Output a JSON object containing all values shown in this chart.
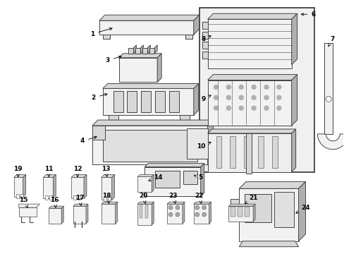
{
  "background_color": "#ffffff",
  "figsize": [
    4.89,
    3.6
  ],
  "dpi": 100,
  "line_color": "#444444",
  "fill_light": "#f2f2f2",
  "fill_mid": "#d8d8d8",
  "fill_dark": "#b0b0b0",
  "lw_main": 0.7,
  "lw_thin": 0.5,
  "font_size": 6.5,
  "font_bold": true
}
